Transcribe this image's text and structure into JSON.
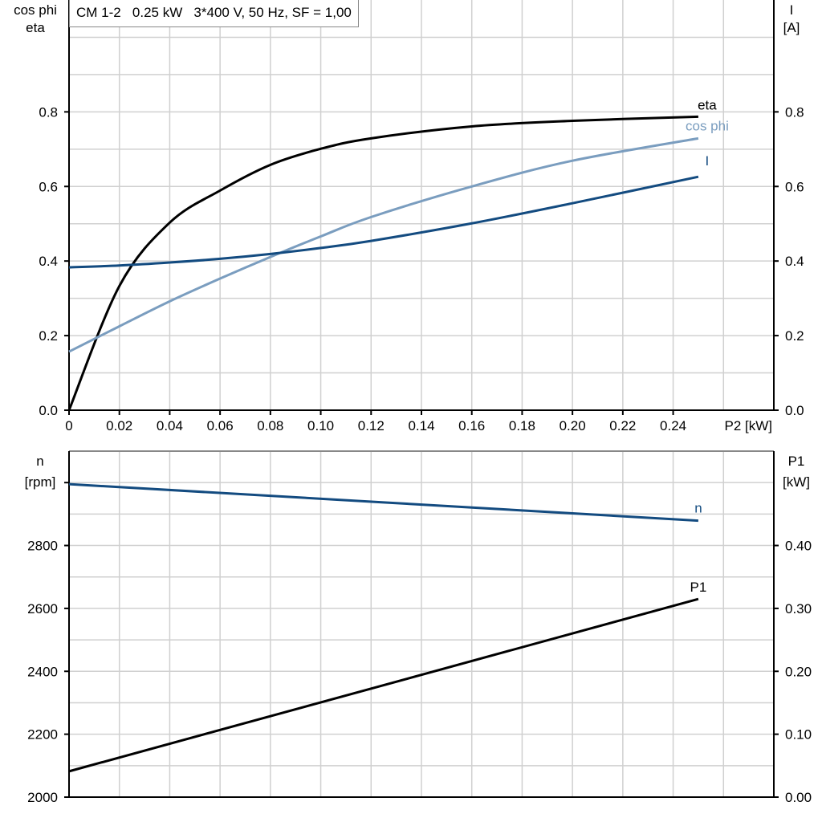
{
  "title": "CM 1-2   0.25 kW   3*400 V, 50 Hz, SF = 1,00",
  "chart_data": [
    {
      "type": "line",
      "xlabel": "P2 [kW]",
      "ylabel_left": [
        "cos phi",
        "eta"
      ],
      "ylabel_right": [
        "I",
        "[A]"
      ],
      "xlim": [
        0,
        0.28
      ],
      "ylim": [
        0,
        1.1
      ],
      "grid": true,
      "x_ticks": [
        "0",
        "0.02",
        "0.04",
        "0.06",
        "0.08",
        "0.10",
        "0.12",
        "0.14",
        "0.16",
        "0.18",
        "0.20",
        "0.22",
        "0.24"
      ],
      "y_ticks_left": [
        "0.0",
        "0.2",
        "0.4",
        "0.6",
        "0.8"
      ],
      "y_ticks_right": [
        "0.0",
        "0.2",
        "0.4",
        "0.6",
        "0.8"
      ],
      "x": [
        0,
        0.02,
        0.04,
        0.06,
        0.08,
        0.1,
        0.12,
        0.16,
        0.2,
        0.25
      ],
      "series": [
        {
          "name": "eta",
          "color": "#000000",
          "values": [
            0.0,
            0.333,
            0.503,
            0.589,
            0.658,
            0.701,
            0.729,
            0.761,
            0.776,
            0.787
          ]
        },
        {
          "name": "cos phi",
          "color": "#7a9dbf",
          "values": [
            0.157,
            0.225,
            0.292,
            0.353,
            0.411,
            0.466,
            0.518,
            0.6,
            0.669,
            0.729
          ]
        },
        {
          "name": "I",
          "color": "#134b80",
          "values": [
            0.383,
            0.388,
            0.396,
            0.406,
            0.419,
            0.435,
            0.454,
            0.501,
            0.555,
            0.626
          ]
        }
      ]
    },
    {
      "type": "line",
      "ylabel_left": [
        "n",
        "[rpm]"
      ],
      "ylabel_right": [
        "P1",
        "[kW]"
      ],
      "xlim": [
        0,
        0.28
      ],
      "ylim": [
        2000,
        3100
      ],
      "ylim_right": [
        0,
        0.55
      ],
      "grid": true,
      "y_ticks_left": [
        "2000",
        "2200",
        "2400",
        "2600",
        "2800"
      ],
      "y_ticks_right": [
        "0.00",
        "0.10",
        "0.20",
        "0.30",
        "0.40"
      ],
      "x": [
        0,
        0.25
      ],
      "series": [
        {
          "name": "n",
          "color": "#134b80",
          "axis": "left",
          "values": [
            2995,
            2879
          ]
        },
        {
          "name": "P1",
          "color": "#000000",
          "axis": "right",
          "values": [
            0.041,
            0.315
          ]
        }
      ]
    }
  ]
}
